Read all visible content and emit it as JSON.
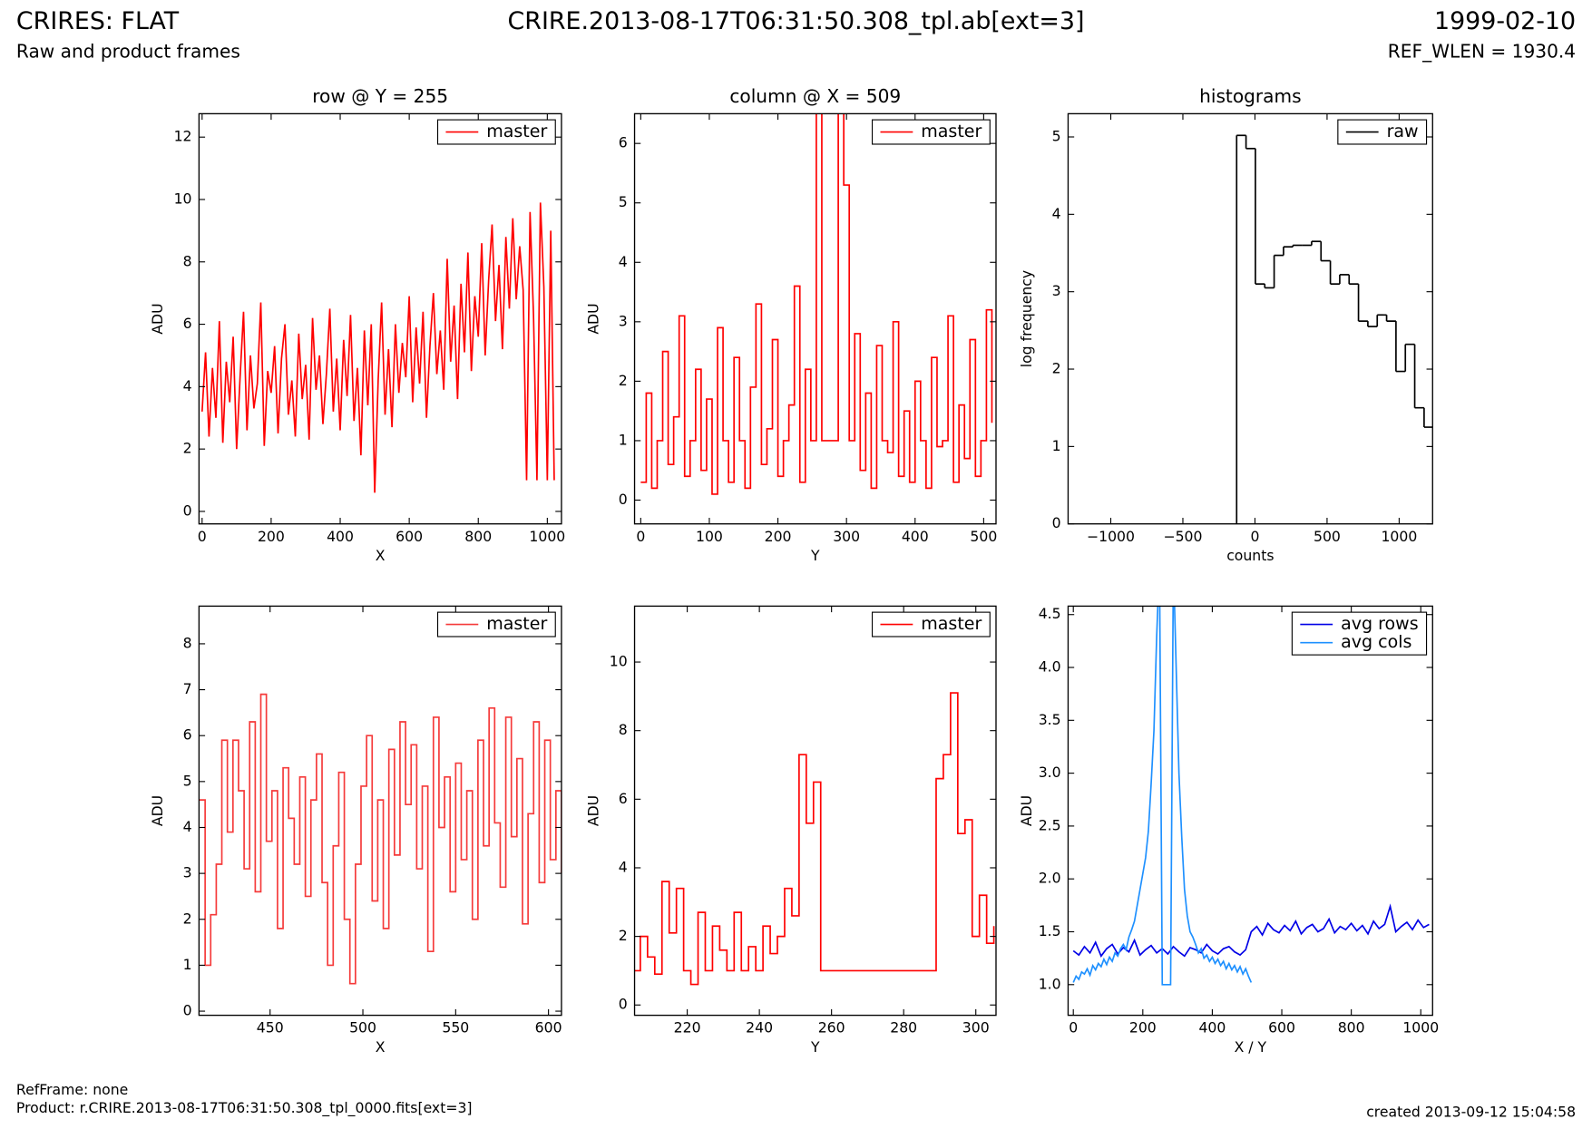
{
  "header": {
    "title": "CRIRES: FLAT",
    "subtitle": "Raw and product frames",
    "file": "CRIRE.2013-08-17T06:31:50.308_tpl.ab[ext=3]",
    "date": "1999-02-10",
    "ref_wlen": "REF_WLEN = 1930.4"
  },
  "footer": {
    "ref_frame": "RefFrame: none",
    "product": "Product: r.CRIRE.2013-08-17T06:31:50.308_tpl_0000.fits[ext=3]",
    "created": "created 2013-09-12 15:04:58"
  },
  "chart_data": [
    {
      "type": "line",
      "title": "row @ Y = 255",
      "x_label": "X",
      "y_label": "ADU",
      "legend": "upper right",
      "xlim": [
        -9,
        1041
      ],
      "ylim": [
        -0.4,
        12.75
      ],
      "xticks": [
        0,
        200,
        400,
        600,
        800,
        1000
      ],
      "yticks": [
        0,
        2,
        4,
        6,
        8,
        10,
        12
      ],
      "x": [
        0,
        10,
        20,
        30,
        40,
        50,
        60,
        70,
        80,
        90,
        100,
        110,
        120,
        130,
        140,
        150,
        160,
        170,
        180,
        190,
        200,
        210,
        220,
        230,
        240,
        250,
        260,
        270,
        280,
        290,
        300,
        310,
        320,
        330,
        340,
        350,
        360,
        370,
        380,
        390,
        400,
        410,
        420,
        430,
        440,
        450,
        460,
        470,
        480,
        490,
        500,
        510,
        520,
        530,
        540,
        550,
        560,
        570,
        580,
        590,
        600,
        610,
        620,
        630,
        640,
        650,
        660,
        670,
        680,
        690,
        700,
        710,
        720,
        730,
        740,
        750,
        760,
        770,
        780,
        790,
        800,
        810,
        820,
        830,
        840,
        850,
        860,
        870,
        880,
        890,
        900,
        910,
        920,
        930,
        940,
        950,
        960,
        970,
        980,
        990,
        1000,
        1010,
        1020
      ],
      "series": [
        {
          "name": "master",
          "color": "#ff0000",
          "values": [
            3.2,
            5.1,
            2.4,
            4.6,
            3.0,
            6.1,
            2.2,
            4.8,
            3.5,
            5.6,
            2.0,
            4.3,
            6.4,
            2.6,
            5.0,
            3.3,
            4.1,
            6.7,
            2.1,
            4.5,
            3.8,
            5.3,
            2.5,
            4.9,
            6.0,
            3.1,
            4.2,
            2.4,
            5.7,
            3.6,
            4.7,
            2.3,
            6.2,
            3.9,
            5.0,
            2.8,
            4.4,
            6.5,
            3.2,
            4.9,
            2.6,
            5.5,
            3.7,
            6.3,
            2.9,
            4.6,
            1.8,
            5.8,
            3.4,
            6.0,
            0.6,
            4.2,
            6.7,
            3.1,
            5.2,
            2.7,
            6.0,
            3.8,
            5.4,
            4.3,
            6.9,
            3.5,
            5.9,
            4.1,
            6.4,
            3.0,
            5.3,
            7.0,
            4.4,
            5.8,
            3.9,
            8.1,
            4.8,
            6.6,
            3.6,
            7.3,
            5.1,
            8.3,
            4.5,
            6.9,
            5.6,
            8.6,
            5.0,
            7.4,
            9.2,
            6.1,
            7.9,
            5.2,
            8.8,
            6.5,
            9.4,
            6.8,
            8.5,
            7.1,
            1.0,
            9.6,
            6.3,
            1.0,
            9.9,
            7.2,
            1.0,
            9.0,
            1.0
          ]
        }
      ]
    },
    {
      "type": "line",
      "drawstyle": "steps",
      "title": "column @ X = 509",
      "x_label": "Y",
      "y_label": "ADU",
      "legend": "upper right",
      "xlim": [
        -9,
        518
      ],
      "ylim": [
        -0.4,
        6.5
      ],
      "xticks": [
        0,
        100,
        200,
        300,
        400,
        500
      ],
      "yticks": [
        0,
        1,
        2,
        3,
        4,
        5,
        6
      ],
      "x": [
        0,
        8,
        16,
        24,
        32,
        40,
        48,
        56,
        64,
        72,
        80,
        88,
        96,
        104,
        112,
        120,
        128,
        136,
        144,
        152,
        160,
        168,
        176,
        184,
        192,
        200,
        208,
        216,
        224,
        232,
        240,
        248,
        256,
        264,
        272,
        280,
        288,
        296,
        304,
        312,
        320,
        328,
        336,
        344,
        352,
        360,
        368,
        376,
        384,
        392,
        400,
        408,
        416,
        424,
        432,
        440,
        448,
        456,
        464,
        472,
        480,
        488,
        496,
        504,
        512
      ],
      "series": [
        {
          "name": "master",
          "color": "#ff0000",
          "values": [
            0.3,
            1.8,
            0.2,
            1.0,
            2.5,
            0.6,
            1.4,
            3.1,
            0.4,
            1.0,
            2.2,
            0.5,
            1.7,
            0.1,
            2.9,
            1.0,
            0.3,
            2.4,
            1.0,
            0.2,
            1.9,
            3.3,
            0.6,
            1.2,
            2.7,
            0.4,
            1.0,
            1.6,
            3.6,
            0.3,
            2.2,
            1.0,
            10,
            1.0,
            1.0,
            1.0,
            9.0,
            5.3,
            1.0,
            2.8,
            0.5,
            1.8,
            0.2,
            2.6,
            1.0,
            0.8,
            3.0,
            0.4,
            1.5,
            0.3,
            2.0,
            1.0,
            0.2,
            2.4,
            0.9,
            1.0,
            3.1,
            0.3,
            1.6,
            0.7,
            2.7,
            0.4,
            1.0,
            3.2,
            1.3
          ]
        }
      ]
    },
    {
      "type": "histogram",
      "title": "histograms",
      "x_label": "counts",
      "y_label": "log frequency",
      "legend": "upper right",
      "xlim": [
        -1296,
        1232
      ],
      "ylim": [
        0,
        5.3
      ],
      "xticks": [
        {
          "value": -1000,
          "label": "−1000"
        },
        {
          "value": -500,
          "label": "−500"
        },
        0,
        500,
        1000
      ],
      "yticks": [
        0,
        1,
        2,
        3,
        4,
        5
      ],
      "bins": [
        -127,
        -62,
        3,
        68,
        133,
        198,
        263,
        328,
        393,
        458,
        523,
        588,
        653,
        718,
        783,
        848,
        913,
        978,
        1043,
        1108,
        1173,
        1238
      ],
      "series": [
        {
          "name": "raw",
          "color": "#000000",
          "values": [
            5.02,
            4.85,
            3.1,
            3.05,
            3.47,
            3.58,
            3.6,
            3.6,
            3.65,
            3.4,
            3.1,
            3.22,
            3.1,
            2.62,
            2.55,
            2.7,
            2.62,
            1.97,
            2.32,
            1.5,
            1.25
          ]
        }
      ]
    },
    {
      "type": "line",
      "drawstyle": "steps",
      "x_label": "X",
      "y_label": "ADU",
      "legend": "upper right",
      "xlim": [
        411.7,
        607
      ],
      "ylim": [
        -0.09,
        8.82
      ],
      "xticks": [
        450,
        500,
        550,
        600
      ],
      "yticks": [
        0,
        1,
        2,
        3,
        4,
        5,
        6,
        7,
        8
      ],
      "x": [
        412,
        415,
        418,
        421,
        424,
        427,
        430,
        433,
        436,
        439,
        442,
        445,
        448,
        451,
        454,
        457,
        460,
        463,
        466,
        469,
        472,
        475,
        478,
        481,
        484,
        487,
        490,
        493,
        496,
        499,
        502,
        505,
        508,
        511,
        514,
        517,
        520,
        523,
        526,
        529,
        532,
        535,
        538,
        541,
        544,
        547,
        550,
        553,
        556,
        559,
        562,
        565,
        568,
        571,
        574,
        577,
        580,
        583,
        586,
        589,
        592,
        595,
        598,
        601,
        604,
        607
      ],
      "series": [
        {
          "name": "master",
          "color": "#f53a3a",
          "values": [
            4.6,
            1.0,
            2.1,
            3.2,
            5.9,
            3.9,
            5.9,
            4.8,
            3.1,
            6.3,
            2.6,
            6.9,
            3.7,
            4.8,
            1.8,
            5.3,
            4.2,
            3.2,
            5.1,
            2.5,
            4.6,
            5.6,
            2.8,
            1.0,
            3.6,
            5.2,
            2.0,
            0.6,
            3.2,
            4.9,
            6.0,
            2.4,
            4.6,
            1.8,
            5.7,
            3.4,
            6.3,
            4.5,
            5.8,
            3.1,
            4.9,
            1.3,
            6.4,
            4.0,
            5.1,
            2.6,
            5.4,
            3.3,
            4.8,
            2.0,
            5.9,
            3.6,
            6.6,
            4.1,
            2.7,
            6.4,
            3.8,
            5.5,
            1.9,
            4.3,
            6.3,
            2.8,
            5.9,
            3.3,
            4.8,
            3.0
          ]
        }
      ]
    },
    {
      "type": "line",
      "drawstyle": "steps",
      "x_label": "Y",
      "y_label": "ADU",
      "legend": "upper right",
      "xlim": [
        205.4,
        305.6
      ],
      "ylim": [
        -0.3,
        11.63
      ],
      "xticks": [
        220,
        240,
        260,
        280,
        300
      ],
      "yticks": [
        0,
        2,
        4,
        6,
        8,
        10
      ],
      "x": [
        205,
        207,
        209,
        211,
        213,
        215,
        217,
        219,
        221,
        223,
        225,
        227,
        229,
        231,
        233,
        235,
        237,
        239,
        241,
        243,
        245,
        247,
        249,
        251,
        253,
        255,
        257,
        259,
        261,
        263,
        265,
        267,
        269,
        271,
        273,
        275,
        277,
        279,
        281,
        283,
        285,
        287,
        289,
        291,
        293,
        295,
        297,
        299,
        301,
        303,
        305
      ],
      "series": [
        {
          "name": "master",
          "color": "#ff0000",
          "values": [
            1.0,
            2.0,
            1.4,
            0.9,
            3.6,
            2.1,
            3.4,
            1.0,
            0.6,
            2.7,
            1.0,
            2.3,
            1.6,
            1.0,
            2.7,
            1.0,
            1.7,
            1.0,
            2.3,
            1.5,
            2.0,
            3.4,
            2.6,
            7.3,
            5.3,
            6.5,
            1.0,
            1.0,
            1.0,
            1.0,
            1.0,
            1.0,
            1.0,
            1.0,
            1.0,
            1.0,
            1.0,
            1.0,
            1.0,
            1.0,
            1.0,
            1.0,
            6.6,
            7.3,
            9.1,
            5.0,
            5.4,
            2.0,
            3.2,
            1.8,
            2.3
          ]
        }
      ]
    },
    {
      "type": "line",
      "x_label": "X / Y",
      "y_label": "ADU",
      "legend": "upper right",
      "xlim": [
        -15,
        1034
      ],
      "ylim": [
        0.71,
        4.58
      ],
      "xticks": [
        0,
        200,
        400,
        600,
        800,
        1000
      ],
      "yticks": [
        {
          "value": 1,
          "label": "1.0"
        },
        1.5,
        {
          "value": 2,
          "label": "2.0"
        },
        2.5,
        {
          "value": 3,
          "label": "3.0"
        },
        3.5,
        {
          "value": 4,
          "label": "4.0"
        },
        4.5
      ],
      "series": [
        {
          "name": "avg rows",
          "color": "#0000e6",
          "x": [
            0,
            16,
            32,
            48,
            64,
            80,
            96,
            112,
            128,
            144,
            160,
            176,
            192,
            208,
            224,
            240,
            256,
            272,
            288,
            304,
            320,
            336,
            352,
            368,
            384,
            400,
            416,
            432,
            448,
            464,
            480,
            496,
            512,
            528,
            544,
            560,
            576,
            592,
            608,
            624,
            640,
            656,
            672,
            688,
            704,
            720,
            736,
            752,
            768,
            784,
            800,
            816,
            832,
            848,
            864,
            880,
            896,
            912,
            928,
            944,
            960,
            976,
            992,
            1008,
            1024
          ],
          "values": [
            1.32,
            1.28,
            1.36,
            1.3,
            1.4,
            1.27,
            1.34,
            1.38,
            1.29,
            1.35,
            1.31,
            1.42,
            1.28,
            1.33,
            1.37,
            1.3,
            1.34,
            1.29,
            1.36,
            1.31,
            1.27,
            1.35,
            1.33,
            1.3,
            1.38,
            1.32,
            1.29,
            1.34,
            1.36,
            1.31,
            1.28,
            1.33,
            1.5,
            1.55,
            1.47,
            1.58,
            1.52,
            1.49,
            1.56,
            1.51,
            1.6,
            1.48,
            1.54,
            1.57,
            1.5,
            1.53,
            1.62,
            1.49,
            1.55,
            1.52,
            1.58,
            1.51,
            1.56,
            1.48,
            1.6,
            1.53,
            1.57,
            1.74,
            1.5,
            1.55,
            1.59,
            1.52,
            1.61,
            1.54,
            1.57
          ]
        },
        {
          "name": "avg cols",
          "color": "#1e90ff",
          "x": [
            0,
            8,
            16,
            24,
            32,
            40,
            48,
            56,
            64,
            72,
            80,
            88,
            96,
            104,
            112,
            120,
            128,
            136,
            144,
            152,
            160,
            168,
            176,
            184,
            192,
            200,
            208,
            216,
            224,
            232,
            240,
            248,
            256,
            264,
            272,
            280,
            288,
            296,
            304,
            312,
            320,
            328,
            336,
            344,
            352,
            360,
            368,
            376,
            384,
            392,
            400,
            408,
            416,
            424,
            432,
            440,
            448,
            456,
            464,
            472,
            480,
            488,
            496,
            504,
            512
          ],
          "values": [
            1.02,
            1.08,
            1.05,
            1.12,
            1.1,
            1.15,
            1.09,
            1.18,
            1.14,
            1.2,
            1.17,
            1.24,
            1.19,
            1.26,
            1.22,
            1.3,
            1.27,
            1.34,
            1.38,
            1.33,
            1.45,
            1.52,
            1.6,
            1.75,
            1.9,
            2.05,
            2.2,
            2.45,
            2.9,
            3.4,
            4.3,
            5.0,
            1.0,
            1.0,
            1.0,
            1.0,
            5.0,
            4.0,
            3.0,
            2.4,
            1.9,
            1.65,
            1.5,
            1.45,
            1.38,
            1.3,
            1.34,
            1.25,
            1.28,
            1.22,
            1.26,
            1.2,
            1.24,
            1.18,
            1.22,
            1.15,
            1.2,
            1.14,
            1.18,
            1.12,
            1.17,
            1.1,
            1.15,
            1.08,
            1.02
          ]
        }
      ]
    }
  ]
}
